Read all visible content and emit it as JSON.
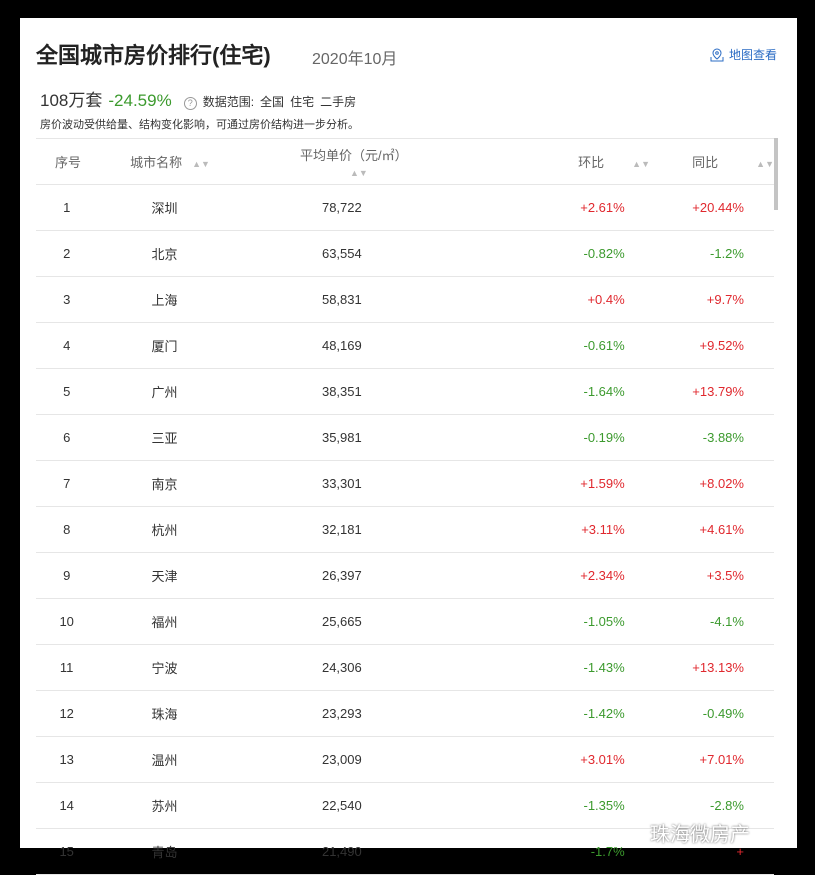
{
  "header": {
    "title": "全国城市房价排行(住宅)",
    "date": "2020年10月",
    "map_link": "地图查看"
  },
  "stats": {
    "total": "108万套",
    "change": "-24.59%",
    "scope_label": "数据范围:",
    "scope": [
      "全国",
      "住宅",
      "二手房"
    ]
  },
  "note": "房价波动受供给量、结构变化影响，可通过房价结构进一步分析。",
  "columns": [
    "序号",
    "城市名称",
    "平均单价（元/㎡）",
    "环比",
    "同比"
  ],
  "rows": [
    [
      "1",
      "深圳",
      "78,722",
      "+2.61%",
      "+20.44%"
    ],
    [
      "2",
      "北京",
      "63,554",
      "-0.82%",
      "-1.2%"
    ],
    [
      "3",
      "上海",
      "58,831",
      "+0.4%",
      "+9.7%"
    ],
    [
      "4",
      "厦门",
      "48,169",
      "-0.61%",
      "+9.52%"
    ],
    [
      "5",
      "广州",
      "38,351",
      "-1.64%",
      "+13.79%"
    ],
    [
      "6",
      "三亚",
      "35,981",
      "-0.19%",
      "-3.88%"
    ],
    [
      "7",
      "南京",
      "33,301",
      "+1.59%",
      "+8.02%"
    ],
    [
      "8",
      "杭州",
      "32,181",
      "+3.11%",
      "+4.61%"
    ],
    [
      "9",
      "天津",
      "26,397",
      "+2.34%",
      "+3.5%"
    ],
    [
      "10",
      "福州",
      "25,665",
      "-1.05%",
      "-4.1%"
    ],
    [
      "11",
      "宁波",
      "24,306",
      "-1.43%",
      "+13.13%"
    ],
    [
      "12",
      "珠海",
      "23,293",
      "-1.42%",
      "-0.49%"
    ],
    [
      "13",
      "温州",
      "23,009",
      "+3.01%",
      "+7.01%"
    ],
    [
      "14",
      "苏州",
      "22,540",
      "-1.35%",
      "-2.8%"
    ],
    [
      "15",
      "青岛",
      "21,490",
      "-1.7%",
      "+"
    ]
  ],
  "colors": {
    "up": "#e0282e",
    "down": "#3c9a2e",
    "link": "#2b6cc4"
  },
  "watermark": "珠海微房产"
}
